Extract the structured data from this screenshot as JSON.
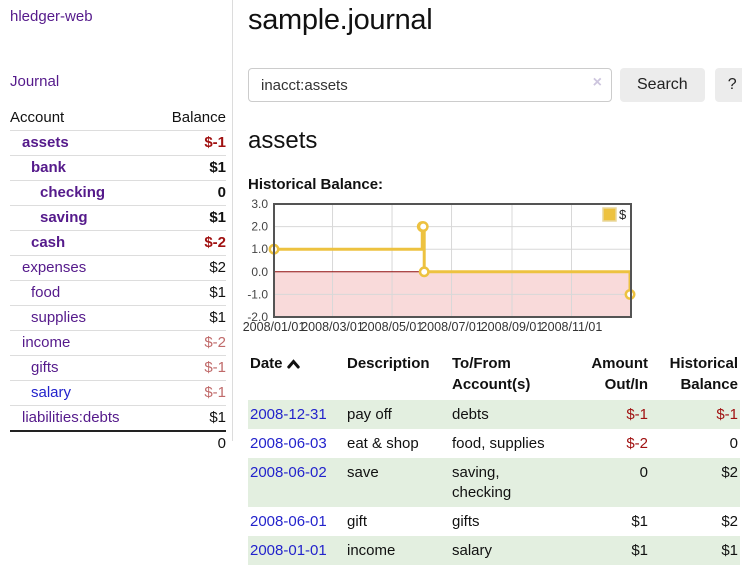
{
  "sidebar": {
    "app_title": "hledger-web",
    "journal_label": "Journal",
    "accounts_table": {
      "header_account": "Account",
      "header_balance": "Balance",
      "rows": [
        {
          "name": "assets",
          "balance": "$-1"
        },
        {
          "name": "bank",
          "balance": "$1"
        },
        {
          "name": "checking",
          "balance": "0"
        },
        {
          "name": "saving",
          "balance": "$1"
        },
        {
          "name": "cash",
          "balance": "$-2"
        },
        {
          "name": "expenses",
          "balance": "$2"
        },
        {
          "name": "food",
          "balance": "$1"
        },
        {
          "name": "supplies",
          "balance": "$1"
        },
        {
          "name": "income",
          "balance": "$-2"
        },
        {
          "name": "gifts",
          "balance": "$-1"
        },
        {
          "name": "salary",
          "balance": "$-1"
        },
        {
          "name": "liabilities:debts",
          "balance": "$1"
        }
      ],
      "total": "0"
    }
  },
  "main": {
    "title": "sample.journal",
    "search": {
      "value": "inacct:assets",
      "clear_icon": "×",
      "button_label": "Search",
      "help_label": "?"
    },
    "account_heading": "assets",
    "chart_label": "Historical Balance:"
  },
  "chart_data": {
    "type": "line",
    "step": true,
    "title": "Historical Balance:",
    "series": [
      {
        "name": "$",
        "color": "#edc240",
        "points": [
          [
            "2008-01-01",
            1
          ],
          [
            "2008-06-01",
            2
          ],
          [
            "2008-06-02",
            2
          ],
          [
            "2008-06-03",
            0
          ],
          [
            "2008-12-31",
            -1
          ]
        ]
      }
    ],
    "xlim": [
      "2008-01-01",
      "2009-01-01"
    ],
    "ylim": [
      -2,
      3
    ],
    "x_ticks": [
      "2008/01/01",
      "2008/03/01",
      "2008/05/01",
      "2008/07/01",
      "2008/09/01",
      "2008/11/01"
    ],
    "y_ticks": [
      "3.0",
      "2.0",
      "1.0",
      "0.0",
      "-1.0",
      "-2.0"
    ],
    "grid": true,
    "grid_color": "#d8d8d8",
    "border_color": "#545454",
    "zero_line_color": "#8f0d0d",
    "negative_fill": "#f9dada",
    "legend": {
      "label": "$",
      "position": "top-right"
    }
  },
  "transactions": {
    "headers": {
      "date": "Date",
      "sort_icon": "chevron-up",
      "description": "Description",
      "tofrom_line1": "To/From",
      "tofrom_line2": "Account(s)",
      "amount_line1": "Amount",
      "amount_line2": "Out/In",
      "balance_line1": "Historical",
      "balance_line2": "Balance"
    },
    "rows": [
      {
        "date": "2008-12-31",
        "description": "pay off",
        "accounts": [
          "debts"
        ],
        "amount": "$-1",
        "balance": "$-1"
      },
      {
        "date": "2008-06-03",
        "description": "eat & shop",
        "accounts": [
          "food, supplies"
        ],
        "amount": "$-2",
        "balance": "0"
      },
      {
        "date": "2008-06-02",
        "description": "save",
        "accounts": [
          "saving,",
          "checking"
        ],
        "amount": "0",
        "balance": "$2"
      },
      {
        "date": "2008-06-01",
        "description": "gift",
        "accounts": [
          "gifts"
        ],
        "amount": "$1",
        "balance": "$2"
      },
      {
        "date": "2008-01-01",
        "description": "income",
        "accounts": [
          "salary"
        ],
        "amount": "$1",
        "balance": "$1"
      }
    ]
  }
}
